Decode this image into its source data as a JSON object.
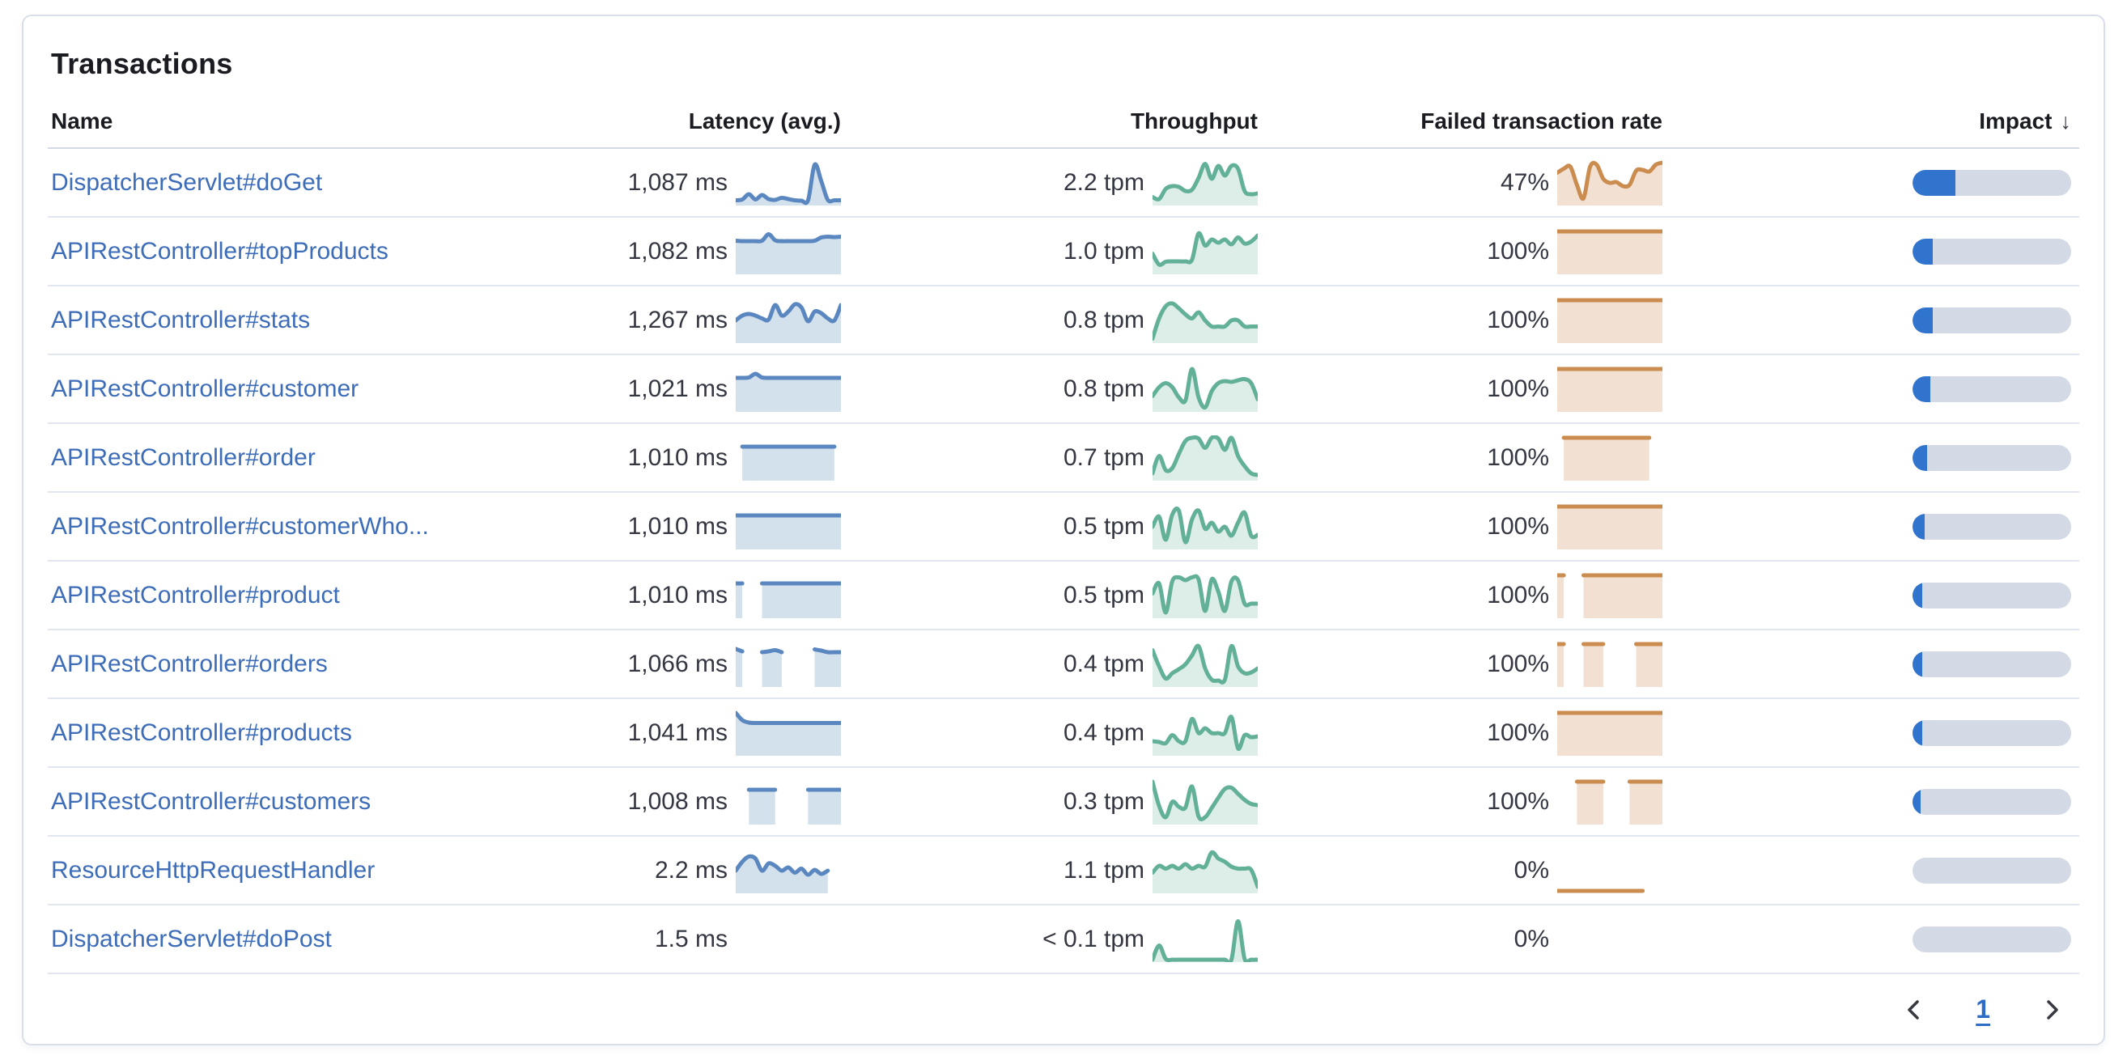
{
  "panel": {
    "title": "Transactions"
  },
  "table": {
    "columns": [
      {
        "label": "Name"
      },
      {
        "label": "Latency (avg.)"
      },
      {
        "label": "Throughput"
      },
      {
        "label": "Failed transaction rate"
      },
      {
        "label": "Impact",
        "sorted": "desc",
        "sort_icon": "↓"
      }
    ],
    "rows": [
      {
        "name": "DispatcherServlet#doGet",
        "latency": "1,087 ms",
        "throughput": "2.2 tpm",
        "failed_rate": "47%",
        "impact_pct": 27,
        "sparklines": {
          "latency": [
            0.07,
            0.09,
            0.22,
            0.09,
            0.2,
            0.1,
            0.08,
            0.13,
            0.1,
            0.07,
            0.06,
            0.07,
            0.95,
            0.55,
            0.08,
            0.07,
            0.07
          ],
          "throughput": [
            0.15,
            0.1,
            0.35,
            0.42,
            0.4,
            0.3,
            0.33,
            0.62,
            0.97,
            0.6,
            0.92,
            0.68,
            0.92,
            0.85,
            0.3,
            0.22,
            0.24
          ],
          "failed_rate": [
            0.75,
            0.85,
            0.9,
            0.45,
            0.12,
            0.9,
            0.95,
            0.6,
            0.5,
            0.52,
            0.42,
            0.45,
            0.8,
            0.82,
            0.78,
            0.95,
            1
          ]
        }
      },
      {
        "name": "APIRestController#topProducts",
        "latency": "1,082 ms",
        "throughput": "1.0 tpm",
        "failed_rate": "100%",
        "impact_pct": 13,
        "sparklines": {
          "latency": [
            0.77,
            0.76,
            0.76,
            0.76,
            0.77,
            0.93,
            0.78,
            0.76,
            0.76,
            0.76,
            0.76,
            0.76,
            0.77,
            0.85,
            0.87,
            0.86,
            0.87
          ],
          "throughput": [
            0.45,
            0.18,
            0.25,
            0.26,
            0.26,
            0.26,
            0.3,
            0.95,
            0.65,
            0.8,
            0.72,
            0.8,
            0.68,
            0.85,
            0.7,
            0.75,
            0.9
          ],
          "failed_rate": [
            1,
            1,
            1,
            1,
            1,
            1,
            1,
            1,
            1,
            1,
            1,
            1,
            1,
            1,
            1,
            1,
            1
          ]
        }
      },
      {
        "name": "APIRestController#stats",
        "latency": "1,267 ms",
        "throughput": "0.8 tpm",
        "failed_rate": "100%",
        "impact_pct": 12.5,
        "sparklines": {
          "latency": [
            0.5,
            0.62,
            0.66,
            0.62,
            0.55,
            0.52,
            0.88,
            0.62,
            0.72,
            0.9,
            0.82,
            0.48,
            0.72,
            0.68,
            0.55,
            0.5,
            0.88
          ],
          "throughput": [
            0.05,
            0.55,
            0.85,
            0.92,
            0.8,
            0.65,
            0.55,
            0.7,
            0.5,
            0.35,
            0.35,
            0.35,
            0.5,
            0.5,
            0.35,
            0.35,
            0.35
          ],
          "failed_rate": [
            1,
            1,
            1,
            1,
            1,
            1,
            1,
            1,
            1,
            1,
            1,
            1,
            1,
            1,
            1,
            1,
            1
          ]
        }
      },
      {
        "name": "APIRestController#customer",
        "latency": "1,021 ms",
        "throughput": "0.8 tpm",
        "failed_rate": "100%",
        "impact_pct": 11,
        "sparklines": {
          "latency": [
            0.78,
            0.78,
            0.79,
            0.88,
            0.79,
            0.78,
            0.78,
            0.78,
            0.78,
            0.78,
            0.78,
            0.78,
            0.78,
            0.78,
            0.78,
            0.78,
            0.78
          ],
          "throughput": [
            0.33,
            0.55,
            0.65,
            0.55,
            0.3,
            0.22,
            1,
            0.3,
            0.05,
            0.45,
            0.65,
            0.7,
            0.68,
            0.72,
            0.75,
            0.65,
            0.25
          ],
          "failed_rate": [
            1,
            1,
            1,
            1,
            1,
            1,
            1,
            1,
            1,
            1,
            1,
            1,
            1,
            1,
            1,
            1,
            1
          ]
        }
      },
      {
        "name": "APIRestController#order",
        "latency": "1,010 ms",
        "throughput": "0.7 tpm",
        "failed_rate": "100%",
        "impact_pct": 9,
        "sparklines": {
          "latency": [
            null,
            0.78,
            0.78,
            0.78,
            0.78,
            0.78,
            0.78,
            0.78,
            0.78,
            0.78,
            0.78,
            0.78,
            0.78,
            0.78,
            0.78,
            0.78,
            null
          ],
          "throughput": [
            0.12,
            0.55,
            0.2,
            0.25,
            0.6,
            0.92,
            1,
            0.98,
            0.75,
            1,
            0.98,
            0.7,
            1,
            0.55,
            0.3,
            0.12,
            0.08
          ],
          "failed_rate": [
            null,
            1,
            1,
            1,
            1,
            1,
            1,
            1,
            1,
            1,
            1,
            1,
            1,
            1,
            1,
            null,
            null
          ]
        }
      },
      {
        "name": "APIRestController#customerWho...",
        "latency": "1,010 ms",
        "throughput": "0.5 tpm",
        "failed_rate": "100%",
        "impact_pct": 7.5,
        "sparklines": {
          "latency": [
            0.78,
            0.78,
            0.78,
            0.78,
            0.78,
            0.78,
            0.78,
            0.78,
            0.78,
            0.78,
            0.78,
            0.78,
            0.78,
            0.78,
            0.78,
            0.78,
            0.78
          ],
          "throughput": [
            0.5,
            0.75,
            0.18,
            0.8,
            0.9,
            0.12,
            0.68,
            0.9,
            0.45,
            0.6,
            0.38,
            0.5,
            0.28,
            0.6,
            0.85,
            0.28,
            0.3
          ],
          "failed_rate": [
            1,
            1,
            1,
            1,
            1,
            1,
            1,
            1,
            1,
            1,
            1,
            1,
            1,
            1,
            1,
            1,
            1
          ]
        }
      },
      {
        "name": "APIRestController#product",
        "latency": "1,010 ms",
        "throughput": "0.5 tpm",
        "failed_rate": "100%",
        "impact_pct": 6,
        "sparklines": {
          "latency": [
            0.8,
            0.8,
            null,
            null,
            0.8,
            0.8,
            0.8,
            0.8,
            0.8,
            0.8,
            0.8,
            0.8,
            0.8,
            0.8,
            0.8,
            0.8,
            0.8
          ],
          "throughput": [
            0.55,
            0.8,
            0.08,
            0.85,
            0.95,
            0.88,
            0.95,
            0.9,
            0.12,
            0.9,
            0.6,
            0.12,
            0.85,
            0.88,
            0.3,
            0.3,
            0.3
          ],
          "failed_rate": [
            1,
            1,
            null,
            null,
            1,
            1,
            1,
            1,
            1,
            1,
            1,
            1,
            1,
            1,
            1,
            1,
            1
          ]
        }
      },
      {
        "name": "APIRestController#orders",
        "latency": "1,066 ms",
        "throughput": "0.4 tpm",
        "failed_rate": "100%",
        "impact_pct": 6,
        "sparklines": {
          "latency": [
            0.88,
            0.82,
            null,
            null,
            0.8,
            0.82,
            0.85,
            0.8,
            null,
            null,
            null,
            null,
            0.87,
            0.84,
            0.8,
            0.8,
            0.8
          ],
          "throughput": [
            0.85,
            0.45,
            0.15,
            0.28,
            0.38,
            0.5,
            0.72,
            0.95,
            0.4,
            0.12,
            0.1,
            0.12,
            0.95,
            0.45,
            0.28,
            0.3,
            0.4
          ],
          "failed_rate": [
            1,
            1,
            null,
            null,
            1,
            1,
            1,
            1,
            null,
            null,
            null,
            null,
            1,
            1,
            1,
            1,
            1
          ]
        }
      },
      {
        "name": "APIRestController#products",
        "latency": "1,041 ms",
        "throughput": "0.4 tpm",
        "failed_rate": "100%",
        "impact_pct": 6,
        "sparklines": {
          "latency": [
            1,
            0.82,
            0.76,
            0.75,
            0.75,
            0.75,
            0.75,
            0.75,
            0.75,
            0.75,
            0.75,
            0.75,
            0.75,
            0.75,
            0.75,
            0.75,
            0.75
          ],
          "throughput": [
            0.3,
            0.28,
            0.25,
            0.45,
            0.3,
            0.3,
            0.85,
            0.5,
            0.62,
            0.5,
            0.5,
            0.5,
            0.9,
            0.12,
            0.45,
            0.4,
            0.42
          ],
          "failed_rate": [
            1,
            1,
            1,
            1,
            1,
            1,
            1,
            1,
            1,
            1,
            1,
            1,
            1,
            1,
            1,
            1,
            1
          ]
        }
      },
      {
        "name": "APIRestController#customers",
        "latency": "1,008 ms",
        "throughput": "0.3 tpm",
        "failed_rate": "100%",
        "impact_pct": 5,
        "sparklines": {
          "latency": [
            null,
            null,
            0.8,
            0.8,
            0.8,
            0.8,
            0.8,
            null,
            null,
            null,
            null,
            0.8,
            0.8,
            0.8,
            0.8,
            0.8,
            0.8
          ],
          "throughput": [
            1,
            0.4,
            0.12,
            0.5,
            0.38,
            0.36,
            0.88,
            0.14,
            0.12,
            0.35,
            0.6,
            0.82,
            0.85,
            0.7,
            0.55,
            0.45,
            0.42
          ],
          "failed_rate": [
            null,
            null,
            null,
            1,
            1,
            1,
            1,
            1,
            null,
            null,
            null,
            1,
            1,
            1,
            1,
            1,
            1
          ]
        }
      },
      {
        "name": "ResourceHttpRequestHandler",
        "latency": "2.2 ms",
        "throughput": "1.1 tpm",
        "failed_rate": "0%",
        "impact_pct": 0,
        "sparklines": {
          "latency": [
            0.5,
            0.72,
            0.85,
            0.8,
            0.5,
            0.68,
            0.62,
            0.5,
            0.58,
            0.45,
            0.55,
            0.4,
            0.52,
            0.42,
            0.5,
            null,
            null
          ],
          "throughput": [
            0.45,
            0.62,
            0.55,
            0.62,
            0.55,
            0.66,
            0.55,
            0.62,
            0.6,
            0.95,
            0.8,
            0.72,
            0.6,
            0.55,
            0.55,
            0.52,
            0.1
          ],
          "failed_rate": [
            0,
            0,
            0,
            0,
            0,
            0,
            0,
            0,
            0,
            0,
            0,
            0,
            0,
            0,
            null,
            null,
            null
          ]
        }
      },
      {
        "name": "DispatcherServlet#doPost",
        "latency": "1.5 ms",
        "throughput": "< 0.1 tpm",
        "failed_rate": "0%",
        "impact_pct": 0,
        "sparklines": {
          "latency": [],
          "throughput": [
            0,
            0.35,
            0.02,
            0,
            0,
            0,
            0,
            0,
            0,
            0,
            0,
            0,
            0,
            0.95,
            0.02,
            0,
            0
          ],
          "failed_rate": []
        }
      }
    ]
  },
  "pagination": {
    "page": "1"
  },
  "colors": {
    "link": "#3d6cb8",
    "latency_stroke": "#5b87c0",
    "latency_fill": "rgba(96,146,192,0.28)",
    "throughput_stroke": "#62b098",
    "throughput_fill": "rgba(98,176,152,0.22)",
    "failed_stroke": "#cb8c50",
    "failed_fill": "rgba(203,140,80,0.26)",
    "impact_fill": "#3074cd",
    "impact_track": "#d3dae6"
  }
}
